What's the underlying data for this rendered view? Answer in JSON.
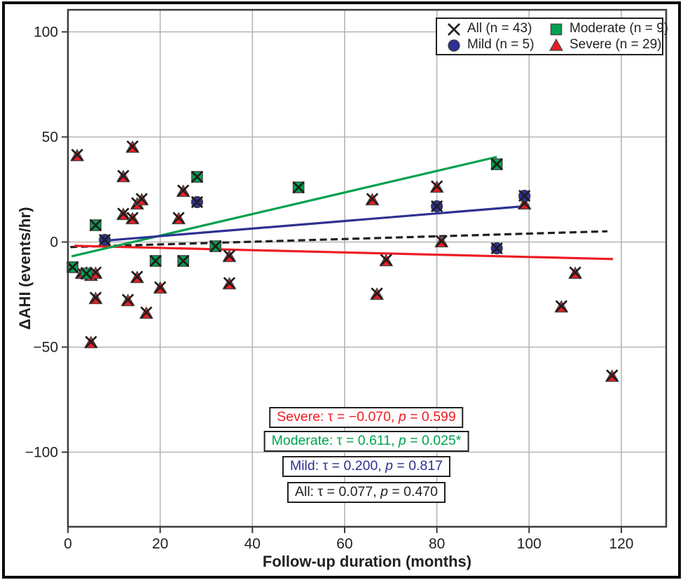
{
  "figure": {
    "x_axis_label": "Follow-up duration (months)",
    "y_axis_label": "ΔAHI (events/hr)"
  },
  "colors": {
    "severe_red": "#ed1c24",
    "moderate_green": "#00a14e",
    "mild_blue": "#2e3192",
    "all_black": "#231f20",
    "grid": "#b4b4b4",
    "axis": "#3b3b3b",
    "background": "#ffffff"
  },
  "legend": {
    "items": [
      {
        "id": "all",
        "marker": "x",
        "color": "#231f20",
        "label": "All (n = 43)"
      },
      {
        "id": "moderate",
        "marker": "square",
        "color": "#00a14e",
        "label": "Moderate (n = 9)"
      },
      {
        "id": "mild",
        "marker": "circle",
        "color": "#2e3192",
        "label": "Mild (n = 5)"
      },
      {
        "id": "severe",
        "marker": "triangle",
        "color": "#ed1c24",
        "label": "Severe (n = 29)"
      }
    ]
  },
  "stats_boxes": [
    {
      "id": "severe",
      "color": "#ed1c24",
      "before_p": "Severe: τ = −0.070, ",
      "p": "p",
      "after_p": " = 0.599"
    },
    {
      "id": "moderate",
      "color": "#00a14e",
      "before_p": "Moderate: τ = 0.611, ",
      "p": "p",
      "after_p": " = 0.025*"
    },
    {
      "id": "mild",
      "color": "#2e3192",
      "before_p": "Mild: τ = 0.200, ",
      "p": "p",
      "after_p": " = 0.817"
    },
    {
      "id": "all",
      "color": "#231f20",
      "before_p": "All: τ = 0.077, ",
      "p": "p",
      "after_p": " = 0.470"
    }
  ],
  "chart_data": {
    "type": "scatter",
    "title": "",
    "xlabel": "Follow-up duration (months)",
    "ylabel": "ΔAHI (events/hr)",
    "xlim": [
      0,
      130
    ],
    "ylim": [
      -137,
      110
    ],
    "x_ticks": [
      0,
      20,
      40,
      60,
      80,
      100,
      120
    ],
    "y_ticks": [
      100,
      50,
      0,
      -50,
      -100
    ],
    "grid": true,
    "legend_position": "top-right",
    "series": [
      {
        "id": "severe",
        "name": "Severe (n = 29)",
        "marker": "triangle",
        "color": "#ed1c24",
        "points": [
          [
            2,
            41
          ],
          [
            3,
            -15
          ],
          [
            5,
            -16
          ],
          [
            5,
            -48
          ],
          [
            6,
            -15
          ],
          [
            6,
            -27
          ],
          [
            12,
            31
          ],
          [
            12,
            13
          ],
          [
            13,
            -28
          ],
          [
            14,
            45
          ],
          [
            14,
            11
          ],
          [
            15,
            18
          ],
          [
            15,
            -17
          ],
          [
            16,
            20
          ],
          [
            17,
            -34
          ],
          [
            20,
            -22
          ],
          [
            24,
            11
          ],
          [
            25,
            24
          ],
          [
            35,
            -7
          ],
          [
            35,
            -20
          ],
          [
            66,
            20
          ],
          [
            67,
            -25
          ],
          [
            69,
            -9
          ],
          [
            80,
            26
          ],
          [
            81,
            0
          ],
          [
            99,
            18
          ],
          [
            107,
            -31
          ],
          [
            110,
            -15
          ],
          [
            118,
            -64
          ]
        ]
      },
      {
        "id": "moderate",
        "name": "Moderate (n = 9)",
        "marker": "square",
        "color": "#00a14e",
        "points": [
          [
            1,
            -12
          ],
          [
            4,
            -15
          ],
          [
            6,
            8
          ],
          [
            19,
            -9
          ],
          [
            25,
            -9
          ],
          [
            28,
            31
          ],
          [
            32,
            -2
          ],
          [
            50,
            26
          ],
          [
            93,
            37
          ]
        ]
      },
      {
        "id": "mild",
        "name": "Mild (n = 5)",
        "marker": "circle",
        "color": "#2e3192",
        "points": [
          [
            8,
            1
          ],
          [
            28,
            19
          ],
          [
            80,
            17
          ],
          [
            93,
            -3
          ],
          [
            99,
            22
          ]
        ]
      },
      {
        "id": "all",
        "name": "All (n = 43)",
        "marker": "x",
        "color": "#231f20",
        "overlay_on_all_points": true
      }
    ],
    "trend_lines": [
      {
        "id": "all",
        "name": "All",
        "style": "dashed",
        "color": "#231f20",
        "from": [
          0.5,
          -2.4
        ],
        "to": [
          117,
          5.1
        ]
      },
      {
        "id": "severe",
        "name": "Severe",
        "style": "solid",
        "color": "#ed1c24",
        "from": [
          1.4,
          -1.8
        ],
        "to": [
          118.2,
          -8.1
        ]
      },
      {
        "id": "moderate",
        "name": "Moderate",
        "style": "solid",
        "color": "#00a14e",
        "from": [
          0.8,
          -6.8
        ],
        "to": [
          93,
          40.5
        ]
      },
      {
        "id": "mild",
        "name": "Mild",
        "style": "solid",
        "color": "#2e3192",
        "from": [
          7.8,
          0.6
        ],
        "to": [
          100,
          17.2
        ]
      }
    ]
  }
}
